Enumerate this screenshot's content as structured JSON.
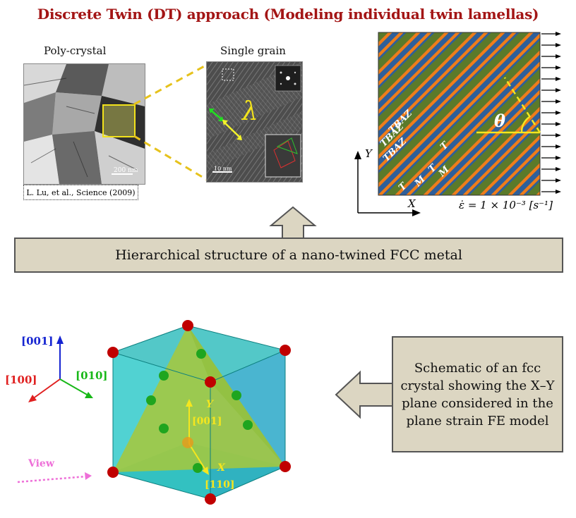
{
  "title": "Discrete Twin (DT) approach (Modeling individual twin lamellas)",
  "polycrystal": {
    "caption": "Poly-crystal",
    "scale_bar": "200 nm",
    "citation": "L. Lu, et al., Science (2009)"
  },
  "single_grain": {
    "caption": "Single grain",
    "scale_bar": "10 nm",
    "lambda": "λ"
  },
  "lamella_panel": {
    "theta": "θ",
    "labels": [
      "TBAZ",
      "M",
      "T",
      "TBAZ",
      "M",
      "T",
      "TBAZ",
      "T"
    ],
    "axis_x": "X",
    "axis_y": "Y",
    "strain_rate": "ε̇ = 1 × 10⁻³ [s⁻¹]",
    "colors": {
      "green": "#5b7a2a",
      "blue": "#2f5f9a",
      "orange": "#ef7d1a"
    }
  },
  "hierarchy_box": {
    "text": "Hierarchical structure of a nano-twined FCC metal"
  },
  "crystal": {
    "axis_001": "[001]",
    "axis_100": "[100]",
    "axis_010": "[010]",
    "view_label": "View",
    "plane_y": "Y",
    "plane_y_dir": "[001]",
    "plane_x": "X",
    "plane_x_dir": "[110]",
    "colors": {
      "corner_atom": "#c00000",
      "face_atom": "#1fa51f",
      "cube": "#19b5b5",
      "plane": "#a8c83a"
    }
  },
  "schematic_box": {
    "text": "Schematic of an fcc crystal showing the X–Y plane considered in the plane strain FE model"
  }
}
